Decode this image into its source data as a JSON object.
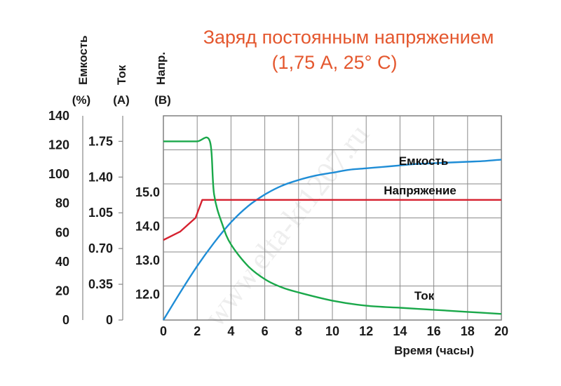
{
  "chart_data": {
    "type": "line",
    "title": "Заряд постоянным напряжением",
    "subtitle": "(1,75 А, 25° С)",
    "xlabel": "Время (часы)",
    "xlim": [
      0,
      20
    ],
    "x_ticks": [
      "0",
      "2",
      "4",
      "6",
      "8",
      "10",
      "12",
      "14",
      "16",
      "18",
      "20"
    ],
    "grid": true,
    "watermark": "www.elta-kt1207.ru",
    "axes": {
      "capacity": {
        "label": "Емкость",
        "unit": "(%)",
        "range": [
          0,
          140
        ],
        "ticks": [
          "140",
          "120",
          "100",
          "80",
          "60",
          "40",
          "20",
          "0"
        ]
      },
      "current": {
        "label": "Ток",
        "unit": "(А)",
        "range": [
          0,
          2.0
        ],
        "ticks": [
          "1.75",
          "1.40",
          "1.05",
          "0.70",
          "0.35",
          "0"
        ]
      },
      "voltage": {
        "label": "Напр.",
        "unit": "(В)",
        "range": [
          11.25,
          17.25
        ],
        "ticks": [
          "15.0",
          "14.0",
          "13.0",
          "12.0"
        ]
      }
    },
    "series": [
      {
        "name": "Емкость",
        "axis": "capacity",
        "color": "#1f8dd6",
        "x": [
          0,
          1,
          2,
          3,
          4,
          5,
          6,
          7,
          8,
          9,
          10,
          11,
          12,
          13,
          14,
          15,
          16,
          17,
          18,
          19,
          20
        ],
        "values": [
          0,
          19,
          37,
          53,
          67,
          78,
          86,
          92,
          96,
          99,
          101,
          103,
          104,
          105,
          106,
          107,
          107.5,
          108,
          108.5,
          109,
          110
        ]
      },
      {
        "name": "Напряжение",
        "axis": "voltage",
        "color": "#d6212f",
        "x": [
          0,
          1,
          1.9,
          2.3,
          20
        ],
        "values": [
          13.6,
          13.85,
          14.25,
          14.78,
          14.78
        ]
      },
      {
        "name": "Ток",
        "axis": "current",
        "color": "#1aa84a",
        "x": [
          0,
          1,
          2,
          2.75,
          3,
          3.5,
          4,
          5,
          6,
          7,
          8,
          10,
          12,
          14,
          16,
          18,
          20
        ],
        "values": [
          1.75,
          1.75,
          1.75,
          1.75,
          1.23,
          0.93,
          0.74,
          0.53,
          0.4,
          0.32,
          0.27,
          0.19,
          0.14,
          0.12,
          0.1,
          0.08,
          0.06
        ]
      }
    ]
  }
}
